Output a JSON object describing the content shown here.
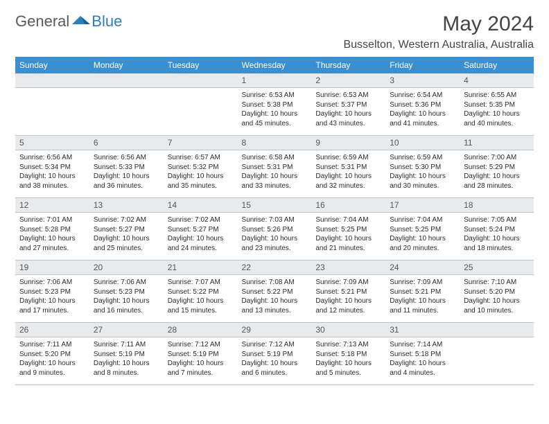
{
  "brand": {
    "part1": "General",
    "part2": "Blue",
    "icon_color": "#2a7fbf"
  },
  "title": "May 2024",
  "location": "Busselton, Western Australia, Australia",
  "colors": {
    "header_bg": "#3a8fd0",
    "daynum_bg": "#e9eaec",
    "rule": "#b9c3cc"
  },
  "day_headers": [
    "Sunday",
    "Monday",
    "Tuesday",
    "Wednesday",
    "Thursday",
    "Friday",
    "Saturday"
  ],
  "weeks": [
    [
      null,
      null,
      null,
      {
        "n": "1",
        "sr": "6:53 AM",
        "ss": "5:38 PM",
        "dl": "10 hours and 45 minutes."
      },
      {
        "n": "2",
        "sr": "6:53 AM",
        "ss": "5:37 PM",
        "dl": "10 hours and 43 minutes."
      },
      {
        "n": "3",
        "sr": "6:54 AM",
        "ss": "5:36 PM",
        "dl": "10 hours and 41 minutes."
      },
      {
        "n": "4",
        "sr": "6:55 AM",
        "ss": "5:35 PM",
        "dl": "10 hours and 40 minutes."
      }
    ],
    [
      {
        "n": "5",
        "sr": "6:56 AM",
        "ss": "5:34 PM",
        "dl": "10 hours and 38 minutes."
      },
      {
        "n": "6",
        "sr": "6:56 AM",
        "ss": "5:33 PM",
        "dl": "10 hours and 36 minutes."
      },
      {
        "n": "7",
        "sr": "6:57 AM",
        "ss": "5:32 PM",
        "dl": "10 hours and 35 minutes."
      },
      {
        "n": "8",
        "sr": "6:58 AM",
        "ss": "5:31 PM",
        "dl": "10 hours and 33 minutes."
      },
      {
        "n": "9",
        "sr": "6:59 AM",
        "ss": "5:31 PM",
        "dl": "10 hours and 32 minutes."
      },
      {
        "n": "10",
        "sr": "6:59 AM",
        "ss": "5:30 PM",
        "dl": "10 hours and 30 minutes."
      },
      {
        "n": "11",
        "sr": "7:00 AM",
        "ss": "5:29 PM",
        "dl": "10 hours and 28 minutes."
      }
    ],
    [
      {
        "n": "12",
        "sr": "7:01 AM",
        "ss": "5:28 PM",
        "dl": "10 hours and 27 minutes."
      },
      {
        "n": "13",
        "sr": "7:02 AM",
        "ss": "5:27 PM",
        "dl": "10 hours and 25 minutes."
      },
      {
        "n": "14",
        "sr": "7:02 AM",
        "ss": "5:27 PM",
        "dl": "10 hours and 24 minutes."
      },
      {
        "n": "15",
        "sr": "7:03 AM",
        "ss": "5:26 PM",
        "dl": "10 hours and 23 minutes."
      },
      {
        "n": "16",
        "sr": "7:04 AM",
        "ss": "5:25 PM",
        "dl": "10 hours and 21 minutes."
      },
      {
        "n": "17",
        "sr": "7:04 AM",
        "ss": "5:25 PM",
        "dl": "10 hours and 20 minutes."
      },
      {
        "n": "18",
        "sr": "7:05 AM",
        "ss": "5:24 PM",
        "dl": "10 hours and 18 minutes."
      }
    ],
    [
      {
        "n": "19",
        "sr": "7:06 AM",
        "ss": "5:23 PM",
        "dl": "10 hours and 17 minutes."
      },
      {
        "n": "20",
        "sr": "7:06 AM",
        "ss": "5:23 PM",
        "dl": "10 hours and 16 minutes."
      },
      {
        "n": "21",
        "sr": "7:07 AM",
        "ss": "5:22 PM",
        "dl": "10 hours and 15 minutes."
      },
      {
        "n": "22",
        "sr": "7:08 AM",
        "ss": "5:22 PM",
        "dl": "10 hours and 13 minutes."
      },
      {
        "n": "23",
        "sr": "7:09 AM",
        "ss": "5:21 PM",
        "dl": "10 hours and 12 minutes."
      },
      {
        "n": "24",
        "sr": "7:09 AM",
        "ss": "5:21 PM",
        "dl": "10 hours and 11 minutes."
      },
      {
        "n": "25",
        "sr": "7:10 AM",
        "ss": "5:20 PM",
        "dl": "10 hours and 10 minutes."
      }
    ],
    [
      {
        "n": "26",
        "sr": "7:11 AM",
        "ss": "5:20 PM",
        "dl": "10 hours and 9 minutes."
      },
      {
        "n": "27",
        "sr": "7:11 AM",
        "ss": "5:19 PM",
        "dl": "10 hours and 8 minutes."
      },
      {
        "n": "28",
        "sr": "7:12 AM",
        "ss": "5:19 PM",
        "dl": "10 hours and 7 minutes."
      },
      {
        "n": "29",
        "sr": "7:12 AM",
        "ss": "5:19 PM",
        "dl": "10 hours and 6 minutes."
      },
      {
        "n": "30",
        "sr": "7:13 AM",
        "ss": "5:18 PM",
        "dl": "10 hours and 5 minutes."
      },
      {
        "n": "31",
        "sr": "7:14 AM",
        "ss": "5:18 PM",
        "dl": "10 hours and 4 minutes."
      },
      null
    ]
  ],
  "labels": {
    "sunrise": "Sunrise: ",
    "sunset": "Sunset: ",
    "daylight": "Daylight: "
  }
}
